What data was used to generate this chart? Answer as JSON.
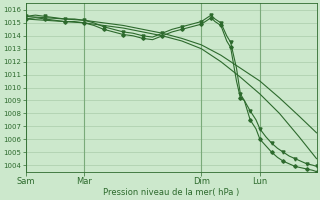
{
  "bg_color": "#cce8cc",
  "grid_color": "#aaccaa",
  "line_color": "#2d6a2d",
  "marker_color": "#2d6a2d",
  "xlabel": "Pression niveau de la mer( hPa )",
  "xlabel_color": "#2d6a2d",
  "tick_color": "#2d6a2d",
  "axis_color": "#2d6a2d",
  "ylim": [
    1003.5,
    1016.5
  ],
  "yticks": [
    1004,
    1005,
    1006,
    1007,
    1008,
    1009,
    1010,
    1011,
    1012,
    1013,
    1014,
    1015,
    1016
  ],
  "xtick_labels": [
    "Sam",
    "Mar",
    "Dim",
    "Lun"
  ],
  "xtick_positions": [
    0,
    30,
    90,
    120
  ],
  "total_points": 150,
  "line1_x": [
    0,
    10,
    20,
    30,
    40,
    50,
    60,
    70,
    80,
    90,
    100,
    110,
    120,
    130,
    140,
    149
  ],
  "line1_y": [
    1015.5,
    1015.4,
    1015.3,
    1015.2,
    1015.0,
    1014.8,
    1014.5,
    1014.2,
    1013.8,
    1013.3,
    1012.5,
    1011.5,
    1010.5,
    1009.2,
    1007.8,
    1006.5
  ],
  "line2_x": [
    0,
    10,
    20,
    30,
    40,
    50,
    60,
    70,
    80,
    90,
    100,
    110,
    120,
    130,
    140,
    149
  ],
  "line2_y": [
    1015.3,
    1015.2,
    1015.1,
    1015.0,
    1014.8,
    1014.6,
    1014.3,
    1014.0,
    1013.6,
    1013.0,
    1012.0,
    1010.8,
    1009.5,
    1008.0,
    1006.2,
    1004.5
  ],
  "line3_x": [
    0,
    5,
    10,
    15,
    20,
    25,
    30,
    35,
    40,
    45,
    50,
    55,
    60,
    65,
    70,
    75,
    80,
    85,
    90,
    92,
    95,
    97,
    100,
    103,
    105,
    108,
    110,
    112,
    115,
    118,
    120,
    123,
    126,
    129,
    132,
    135,
    138,
    141,
    144,
    147,
    149
  ],
  "line3_y": [
    1015.5,
    1015.6,
    1015.5,
    1015.4,
    1015.3,
    1015.3,
    1015.2,
    1015.0,
    1014.7,
    1014.5,
    1014.3,
    1014.2,
    1014.0,
    1013.9,
    1014.2,
    1014.5,
    1014.7,
    1014.9,
    1015.1,
    1015.3,
    1015.6,
    1015.3,
    1015.0,
    1014.0,
    1013.5,
    1011.5,
    1009.5,
    1009.0,
    1008.2,
    1007.5,
    1006.8,
    1006.2,
    1005.7,
    1005.3,
    1005.0,
    1004.7,
    1004.5,
    1004.3,
    1004.1,
    1004.0,
    1003.9
  ],
  "line4_x": [
    0,
    5,
    10,
    15,
    20,
    25,
    30,
    35,
    40,
    45,
    50,
    55,
    60,
    65,
    70,
    75,
    80,
    85,
    90,
    92,
    95,
    97,
    100,
    103,
    105,
    108,
    110,
    112,
    115,
    118,
    120,
    123,
    126,
    129,
    132,
    135,
    138,
    141,
    144,
    147,
    149
  ],
  "line4_y": [
    1015.3,
    1015.4,
    1015.3,
    1015.2,
    1015.1,
    1015.1,
    1015.0,
    1014.8,
    1014.5,
    1014.3,
    1014.1,
    1014.0,
    1013.8,
    1013.7,
    1014.0,
    1014.3,
    1014.5,
    1014.7,
    1014.9,
    1015.1,
    1015.4,
    1015.1,
    1014.8,
    1013.6,
    1013.1,
    1010.5,
    1009.2,
    1009.0,
    1007.5,
    1006.8,
    1006.0,
    1005.5,
    1005.0,
    1004.6,
    1004.3,
    1004.1,
    1003.9,
    1003.8,
    1003.7,
    1003.6,
    1003.5
  ]
}
